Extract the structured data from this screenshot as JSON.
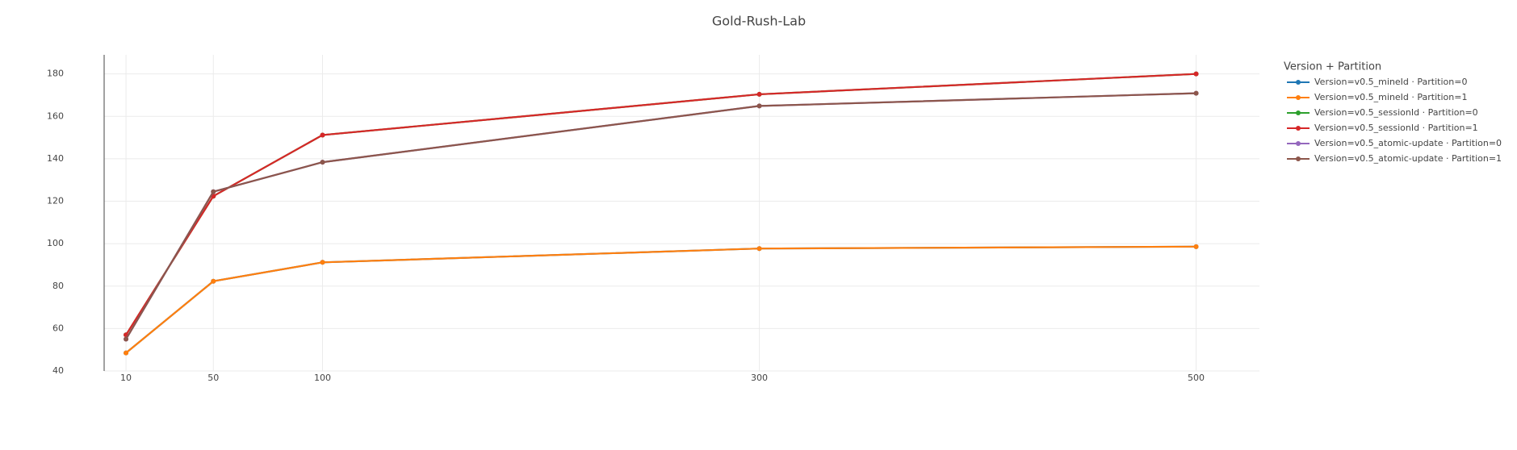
{
  "chart_data": {
    "type": "line",
    "title": "Gold-Rush-Lab",
    "legend_title": "Version + Partition",
    "x": [
      10,
      50,
      100,
      300,
      500
    ],
    "xlim": [
      0,
      529
    ],
    "xticks": [
      10,
      50,
      100,
      300,
      500
    ],
    "ylim": [
      40,
      189
    ],
    "yticks": [
      40,
      60,
      80,
      100,
      120,
      140,
      160,
      180
    ],
    "grid": true,
    "legend": "right",
    "series": [
      {
        "name": "Version=v0.5_mineId · Partition=0",
        "color": "#1f77b4",
        "values": [
          48.5,
          82.3,
          91.2,
          97.7,
          98.6
        ]
      },
      {
        "name": "Version=v0.5_mineId · Partition=1",
        "color": "#ff7f0e",
        "values": [
          48.5,
          82.3,
          91.2,
          97.7,
          98.6
        ]
      },
      {
        "name": "Version=v0.5_sessionId · Partition=0",
        "color": "#2ca02c",
        "values": [
          57,
          122.4,
          151.2,
          170.4,
          180
        ]
      },
      {
        "name": "Version=v0.5_sessionId · Partition=1",
        "color": "#d62728",
        "values": [
          57,
          122.4,
          151.2,
          170.4,
          180
        ]
      },
      {
        "name": "Version=v0.5_atomic-update · Partition=0",
        "color": "#9467bd",
        "values": [
          55,
          124.5,
          138.4,
          164.9,
          170.9
        ]
      },
      {
        "name": "Version=v0.5_atomic-update · Partition=1",
        "color": "#8c564b",
        "values": [
          55,
          124.5,
          138.4,
          164.9,
          170.9
        ]
      }
    ]
  }
}
